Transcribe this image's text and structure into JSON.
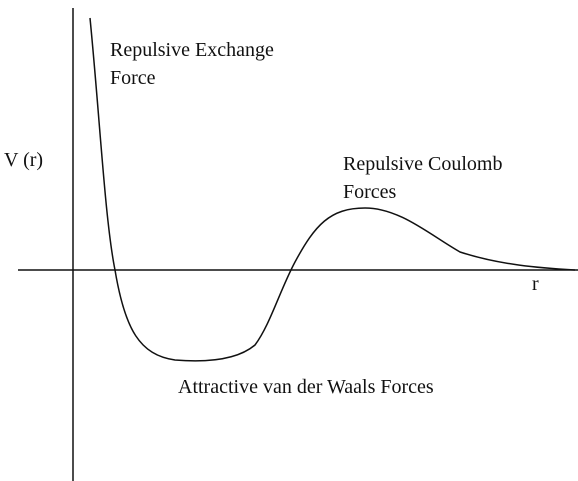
{
  "labels": {
    "y_axis": "V (r)",
    "x_axis": "r",
    "repulsive_exchange": [
      "Repulsive Exchange",
      "Force"
    ],
    "repulsive_coulomb": [
      "Repulsive Coulomb",
      "Forces"
    ],
    "attractive": "Attractive van der Waals Forces"
  }
}
